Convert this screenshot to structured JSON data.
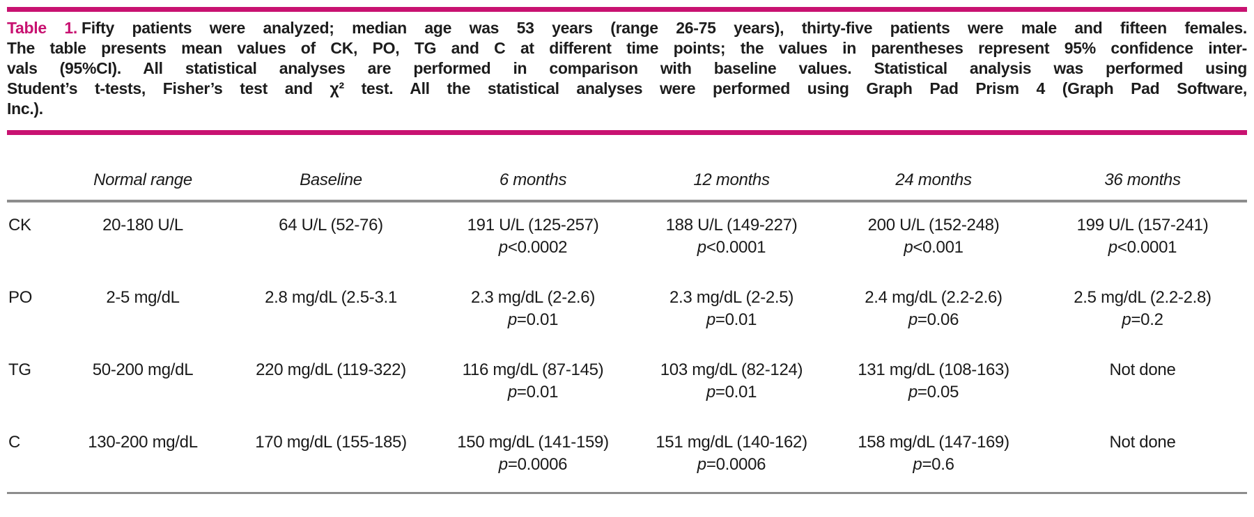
{
  "page": {
    "background_color": "#ffffff",
    "accent_pink": "#c81271",
    "line_gray": "#8d8d8d"
  },
  "caption": {
    "label": "Table 1.",
    "lines": [
      "Fifty patients were analyzed; median age was 53 years (range 26-75 years), thirty-five patients were male and fifteen females.",
      "The table presents mean values of CK, PO, TG and C at different time points; the values in parentheses represent 95% confidence inter-",
      "vals (95%CI). All statistical analyses are performed in comparison with baseline values. Statistical analysis was performed using",
      "Student’s t-tests, Fisher’s test and χ² test. All the statistical analyses were performed using Graph Pad Prism 4 (Graph Pad Software,",
      "Inc.)."
    ]
  },
  "table": {
    "p_symbol": "p",
    "headers": [
      "Normal range",
      "Baseline",
      "6 months",
      "12 months",
      "24 months",
      "36 months"
    ],
    "rows": [
      {
        "label": "CK",
        "cells": [
          {
            "v": "20-180 U/L"
          },
          {
            "v": "64 U/L (52-76)"
          },
          {
            "v": "191 U/L (125-257)",
            "p": "<0.0002"
          },
          {
            "v": "188 U/L (149-227)",
            "p": "<0.0001"
          },
          {
            "v": "200 U/L (152-248)",
            "p": "<0.001"
          },
          {
            "v": "199 U/L (157-241)",
            "p": "<0.0001"
          }
        ]
      },
      {
        "label": "PO",
        "cells": [
          {
            "v": "2-5 mg/dL"
          },
          {
            "v": "2.8 mg/dL (2.5-3.1"
          },
          {
            "v": "2.3 mg/dL (2-2.6)",
            "p": "=0.01"
          },
          {
            "v": "2.3 mg/dL (2-2.5)",
            "p": "=0.01"
          },
          {
            "v": "2.4 mg/dL (2.2-2.6)",
            "p": "=0.06"
          },
          {
            "v": "2.5 mg/dL (2.2-2.8)",
            "p": "=0.2"
          }
        ]
      },
      {
        "label": "TG",
        "cells": [
          {
            "v": "50-200 mg/dL"
          },
          {
            "v": "220 mg/dL (119-322)"
          },
          {
            "v": "116 mg/dL (87-145)",
            "p": "=0.01"
          },
          {
            "v": "103 mg/dL (82-124)",
            "p": "=0.01"
          },
          {
            "v": "131 mg/dL (108-163)",
            "p": "=0.05"
          },
          {
            "v": "Not done"
          }
        ]
      },
      {
        "label": "C",
        "cells": [
          {
            "v": "130-200 mg/dL"
          },
          {
            "v": "170 mg/dL (155-185)"
          },
          {
            "v": "150 mg/dL (141-159)",
            "p": "=0.0006"
          },
          {
            "v": "151 mg/dL (140-162)",
            "p": "=0.0006"
          },
          {
            "v": "158 mg/dL (147-169)",
            "p": "=0.6"
          },
          {
            "v": "Not done"
          }
        ]
      }
    ]
  }
}
